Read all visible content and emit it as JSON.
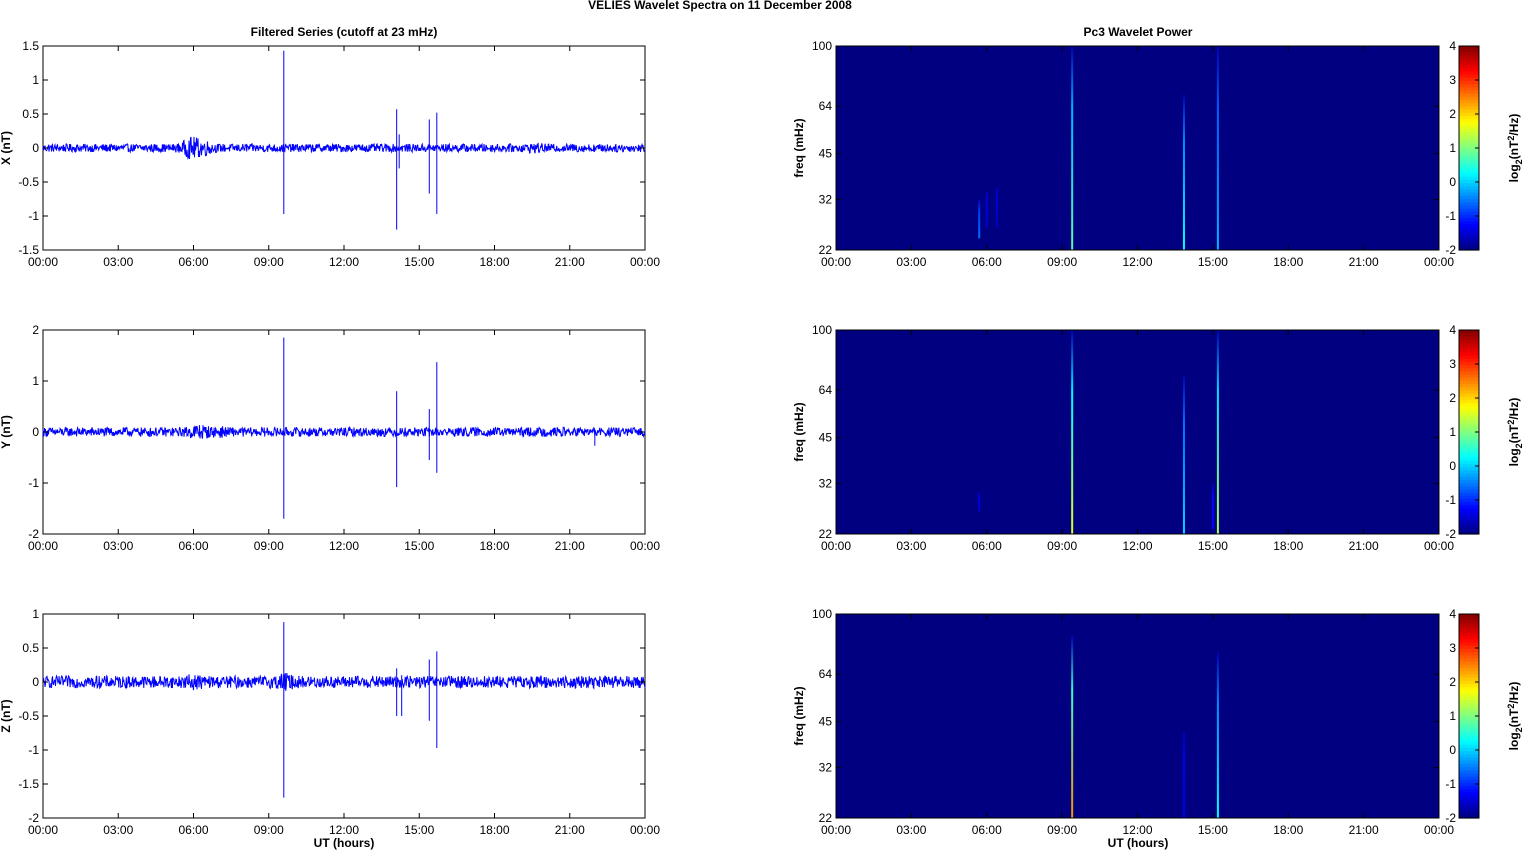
{
  "figure": {
    "suptitle": "VELIES Wavelet Spectra on 11 December  2008",
    "left_title": "Filtered Series (cutoff at 23 mHz)",
    "right_title": "Pc3 Wavelet Power",
    "xlabel": "UT (hours)",
    "freq_ylabel": "freq (mHz)",
    "colorbar_label": "log2(nT2/Hz)",
    "colorbar_label_main": "log",
    "colorbar_label_sub": "2",
    "colorbar_label_open": "(nT",
    "colorbar_label_sup": "2",
    "colorbar_label_close": "/Hz)"
  },
  "colors": {
    "trace": "#0000ff",
    "background_power": "#00008f",
    "colormap": "jet"
  },
  "chart_data": [
    {
      "type": "line",
      "panel": "X",
      "ylabel": "X (nT)",
      "xlim_hours": [
        0,
        24
      ],
      "ylim": [
        -1.5,
        1.5
      ],
      "yticks": [
        -1.5,
        -1,
        -0.5,
        0,
        0.5,
        1,
        1.5
      ],
      "ytick_labels": [
        "-1.5",
        "-1",
        "-0.5",
        "0",
        "0.5",
        "1",
        "1.5"
      ],
      "xtick_labels": [
        "00:00",
        "03:00",
        "06:00",
        "09:00",
        "12:00",
        "15:00",
        "18:00",
        "21:00",
        "00:00"
      ],
      "noise_amplitude": 0.06,
      "noise_bursts": [
        {
          "t": 5.9,
          "amp": 0.16
        },
        {
          "t": 6.4,
          "amp": 0.12
        },
        {
          "t": 19.6,
          "amp": 0.08
        }
      ],
      "spikes": [
        {
          "t": 9.6,
          "max": 1.43,
          "min": -0.97
        },
        {
          "t": 14.1,
          "max": 0.57,
          "min": -1.2
        },
        {
          "t": 14.2,
          "max": 0.2,
          "min": -0.3
        },
        {
          "t": 15.4,
          "max": 0.42,
          "min": -0.67
        },
        {
          "t": 15.7,
          "max": 0.52,
          "min": -0.97
        }
      ]
    },
    {
      "type": "line",
      "panel": "Y",
      "ylabel": "Y (nT)",
      "xlim_hours": [
        0,
        24
      ],
      "ylim": [
        -2,
        2
      ],
      "yticks": [
        -2,
        -1,
        0,
        1,
        2
      ],
      "ytick_labels": [
        "-2",
        "-1",
        "0",
        "1",
        "2"
      ],
      "xtick_labels": [
        "00:00",
        "03:00",
        "06:00",
        "09:00",
        "12:00",
        "15:00",
        "18:00",
        "21:00",
        "00:00"
      ],
      "noise_amplitude": 0.09,
      "noise_bursts": [
        {
          "t": 6.2,
          "amp": 0.17
        },
        {
          "t": 7.0,
          "amp": 0.12
        }
      ],
      "spikes": [
        {
          "t": 9.6,
          "max": 1.85,
          "min": -1.7
        },
        {
          "t": 14.1,
          "max": 0.8,
          "min": -1.08
        },
        {
          "t": 15.4,
          "max": 0.45,
          "min": -0.55
        },
        {
          "t": 15.7,
          "max": 1.37,
          "min": -0.8
        },
        {
          "t": 22.0,
          "max": 0.05,
          "min": -0.27
        }
      ]
    },
    {
      "type": "line",
      "panel": "Z",
      "ylabel": "Z (nT)",
      "xlim_hours": [
        0,
        24
      ],
      "ylim": [
        -2,
        1
      ],
      "yticks": [
        -2,
        -1.5,
        -1,
        -0.5,
        0,
        0.5,
        1
      ],
      "ytick_labels": [
        "-2",
        "-1.5",
        "-1",
        "-0.5",
        "0",
        "0.5",
        "1"
      ],
      "xtick_labels": [
        "00:00",
        "03:00",
        "06:00",
        "09:00",
        "12:00",
        "15:00",
        "18:00",
        "21:00",
        "00:00"
      ],
      "noise_amplitude": 0.09,
      "noise_bursts": [
        {
          "t": 6.0,
          "amp": 0.12
        },
        {
          "t": 9.6,
          "amp": 0.14
        }
      ],
      "spikes": [
        {
          "t": 9.6,
          "max": 0.88,
          "min": -1.7
        },
        {
          "t": 14.1,
          "max": 0.2,
          "min": -0.5
        },
        {
          "t": 14.3,
          "max": 0.1,
          "min": -0.5
        },
        {
          "t": 15.4,
          "max": 0.33,
          "min": -0.57
        },
        {
          "t": 15.7,
          "max": 0.45,
          "min": -0.97
        }
      ]
    },
    {
      "type": "heatmap",
      "panel": "X power",
      "ylabel": "freq (mHz)",
      "xlim_hours": [
        0,
        24
      ],
      "ylim_mhz": [
        22,
        100
      ],
      "y_scale": "log",
      "yticks_mhz": [
        22,
        32,
        45,
        64,
        100
      ],
      "ytick_labels": [
        "22",
        "32",
        "45",
        "64",
        "100"
      ],
      "xtick_labels": [
        "00:00",
        "03:00",
        "06:00",
        "09:00",
        "12:00",
        "15:00",
        "18:00",
        "21:00",
        "00:00"
      ],
      "background_level": -2,
      "clim": [
        -2,
        4
      ],
      "cbar_ticks": [
        -2,
        -1,
        0,
        1,
        2,
        3,
        4
      ],
      "cbar_tick_labels": [
        "-2",
        "-1",
        "0",
        "1",
        "2",
        "3",
        "4"
      ],
      "features": [
        {
          "t": 5.7,
          "fmin": 24,
          "fmax": 32,
          "level": -0.6
        },
        {
          "t": 6.0,
          "fmin": 26,
          "fmax": 34,
          "level": -1.5
        },
        {
          "t": 6.4,
          "fmin": 26,
          "fmax": 35,
          "level": -1.6
        },
        {
          "t": 9.4,
          "fmin": 22,
          "fmax": 100,
          "level": 0.8
        },
        {
          "t": 13.85,
          "fmin": 22,
          "fmax": 70,
          "level": 0.3
        },
        {
          "t": 15.2,
          "fmin": 22,
          "fmax": 100,
          "level": -0.2
        }
      ]
    },
    {
      "type": "heatmap",
      "panel": "Y power",
      "ylabel": "freq (mHz)",
      "xlim_hours": [
        0,
        24
      ],
      "ylim_mhz": [
        22,
        100
      ],
      "y_scale": "log",
      "yticks_mhz": [
        22,
        32,
        45,
        64,
        100
      ],
      "ytick_labels": [
        "22",
        "32",
        "45",
        "64",
        "100"
      ],
      "xtick_labels": [
        "00:00",
        "03:00",
        "06:00",
        "09:00",
        "12:00",
        "15:00",
        "18:00",
        "21:00",
        "00:00"
      ],
      "background_level": -2,
      "clim": [
        -2,
        4
      ],
      "cbar_ticks": [
        -2,
        -1,
        0,
        1,
        2,
        3,
        4
      ],
      "cbar_tick_labels": [
        "-2",
        "-1",
        "0",
        "1",
        "2",
        "3",
        "4"
      ],
      "features": [
        {
          "t": 5.7,
          "fmin": 26,
          "fmax": 30,
          "level": -1.5
        },
        {
          "t": 9.4,
          "fmin": 22,
          "fmax": 100,
          "level": 1.6
        },
        {
          "t": 13.85,
          "fmin": 22,
          "fmax": 72,
          "level": 0.0
        },
        {
          "t": 15.0,
          "fmin": 22,
          "fmax": 32,
          "level": -1.2
        },
        {
          "t": 15.2,
          "fmin": 22,
          "fmax": 100,
          "level": 1.3
        }
      ]
    },
    {
      "type": "heatmap",
      "panel": "Z power",
      "ylabel": "freq (mHz)",
      "xlim_hours": [
        0,
        24
      ],
      "ylim_mhz": [
        22,
        100
      ],
      "y_scale": "log",
      "yticks_mhz": [
        22,
        32,
        45,
        64,
        100
      ],
      "ytick_labels": [
        "22",
        "32",
        "45",
        "64",
        "100"
      ],
      "xtick_labels": [
        "00:00",
        "03:00",
        "06:00",
        "09:00",
        "12:00",
        "15:00",
        "18:00",
        "21:00",
        "00:00"
      ],
      "background_level": -2,
      "clim": [
        -2,
        4
      ],
      "cbar_ticks": [
        -2,
        -1,
        0,
        1,
        2,
        3,
        4
      ],
      "cbar_tick_labels": [
        "-2",
        "-1",
        "0",
        "1",
        "2",
        "3",
        "4"
      ],
      "features": [
        {
          "t": 9.4,
          "fmin": 22,
          "fmax": 85,
          "level": 2.4
        },
        {
          "t": 13.85,
          "fmin": 22,
          "fmax": 42,
          "level": -1.4
        },
        {
          "t": 15.2,
          "fmin": 22,
          "fmax": 75,
          "level": 0.3
        }
      ]
    }
  ]
}
